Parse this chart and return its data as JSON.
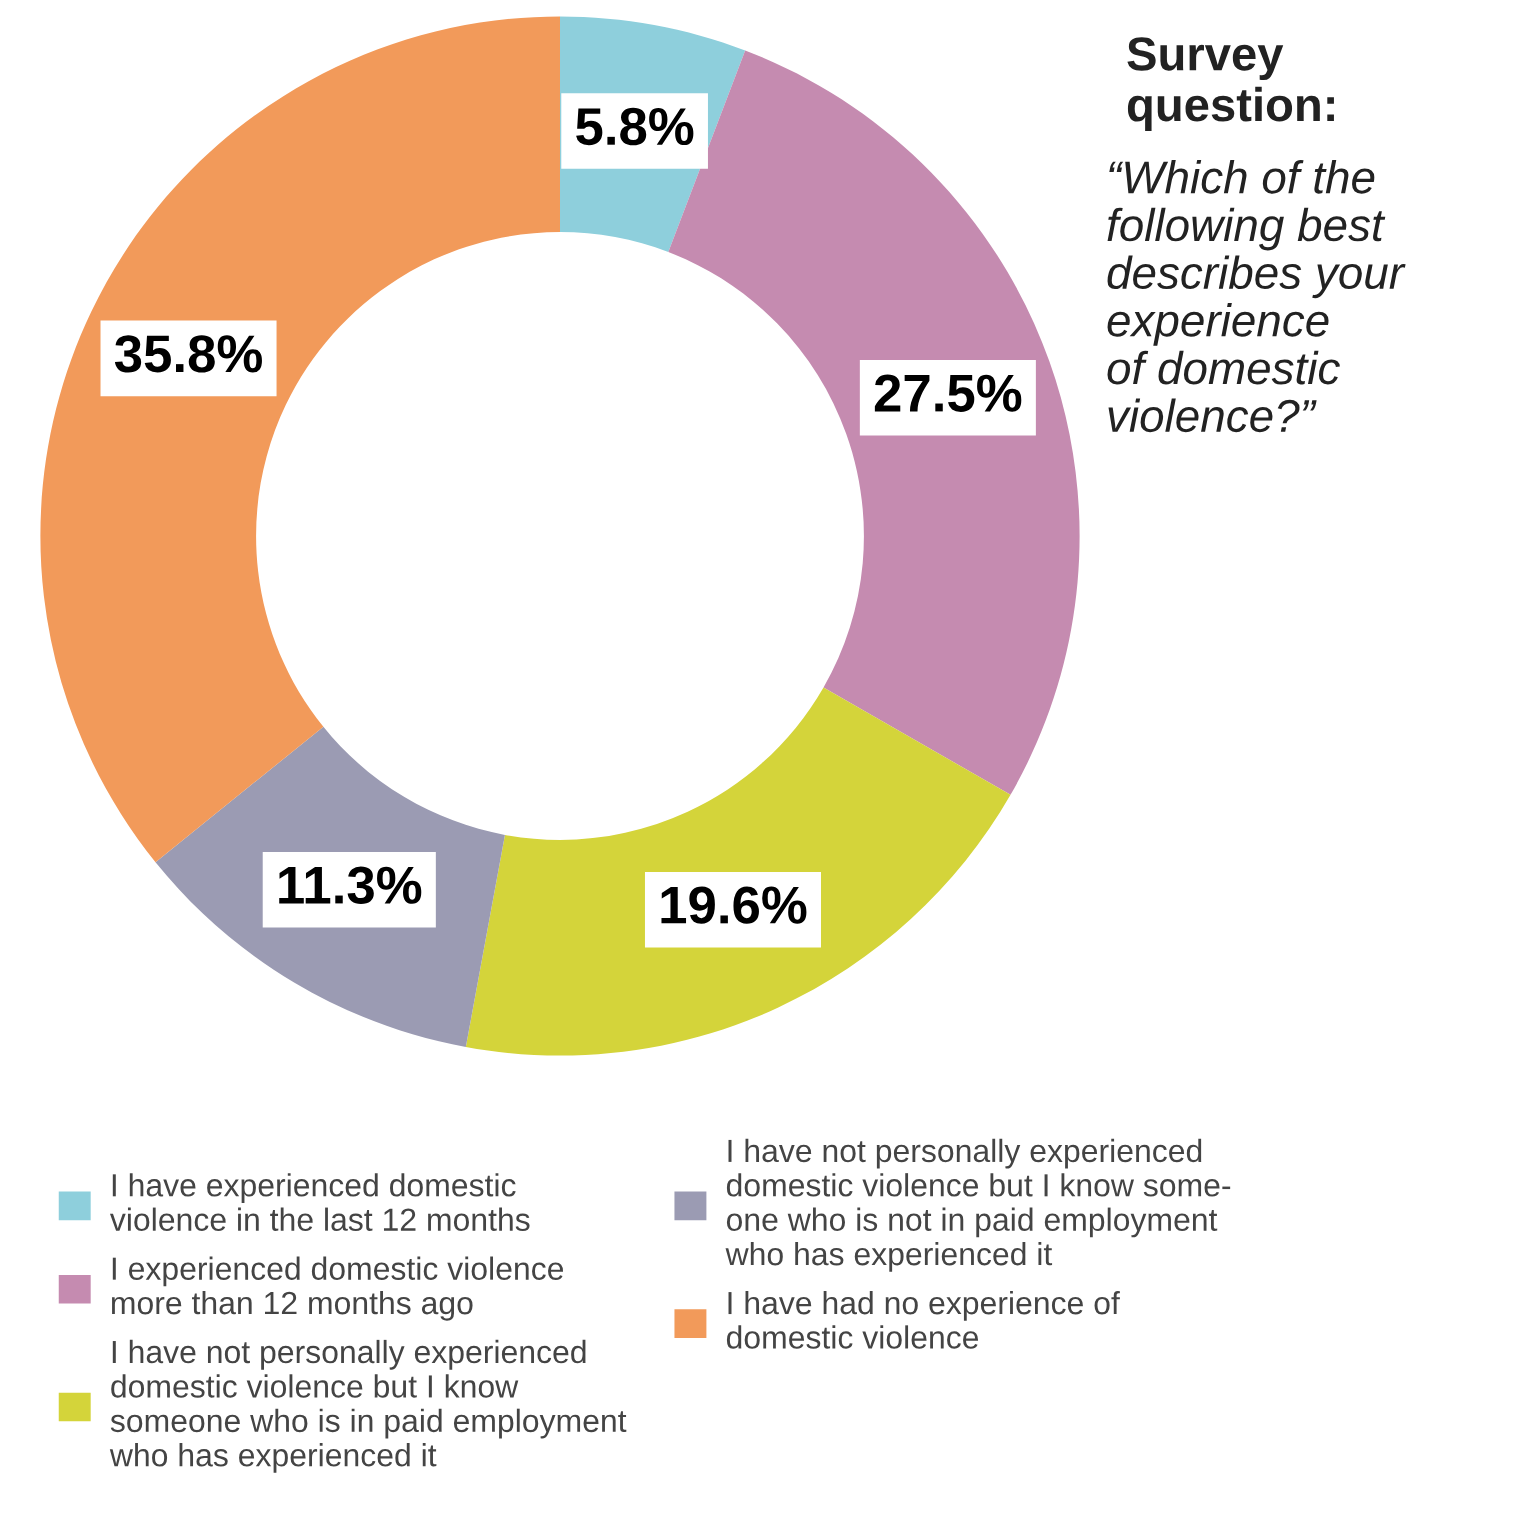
{
  "chart_data": {
    "type": "donut",
    "title": "Survey\nquestion:",
    "subtitle": "“Which of the\nfollowing best\ndescribes your\nexperience\nof domestic\nviolence?”",
    "categories": [
      "I have experienced domestic\nviolence in the last 12 months",
      "I experienced domestic violence\nmore than 12 months ago",
      "I have not personally experienced\ndomestic violence but I know\nsomeone who is in paid employment\nwho has experienced it",
      "I have not personally experienced\ndomestic violence but I know some-\none who is not in paid employment\nwho has experienced it",
      "I have had no experience of\ndomestic violence"
    ],
    "values": [
      5.8,
      27.5,
      19.6,
      11.3,
      35.8
    ],
    "value_labels": [
      "5.8%",
      "27.5%",
      "19.6%",
      "11.3%",
      "35.8%"
    ],
    "colors": [
      "#8ecfdc",
      "#c58bb0",
      "#d4d43a",
      "#9b9bb3",
      "#f29a5a"
    ],
    "legend": "bottom"
  }
}
